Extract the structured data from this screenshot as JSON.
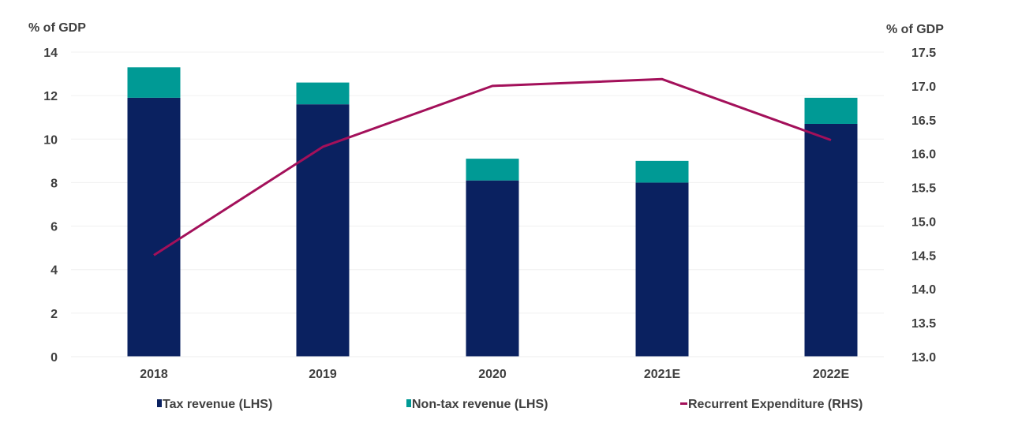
{
  "chart_data": {
    "type": "bar",
    "subtype": "stacked bar with line on secondary axis",
    "title": "",
    "categories": [
      "2018",
      "2019",
      "2020",
      "2021E",
      "2022E"
    ],
    "left_axis": {
      "label": "% of GDP",
      "ylim": [
        0,
        14
      ],
      "ticks": [
        0,
        2,
        4,
        6,
        8,
        10,
        12,
        14
      ],
      "tick_labels": [
        "0",
        "2",
        "4",
        "6",
        "8",
        "10",
        "12",
        "14"
      ]
    },
    "right_axis": {
      "label": "% of GDP",
      "ylim": [
        13.0,
        17.5
      ],
      "ticks": [
        13.0,
        13.5,
        14.0,
        14.5,
        15.0,
        15.5,
        16.0,
        16.5,
        17.0,
        17.5
      ],
      "tick_labels": [
        "13.0",
        "13.5",
        "14.0",
        "14.5",
        "15.0",
        "15.5",
        "16.0",
        "16.5",
        "17.0",
        "17.5"
      ]
    },
    "grid": true,
    "legend_position": "bottom",
    "series": [
      {
        "name": "Tax revenue (LHS)",
        "type": "bar",
        "axis": "left",
        "color": "#0a2160",
        "values": [
          11.9,
          11.6,
          8.1,
          8.0,
          10.7
        ]
      },
      {
        "name": "Non-tax revenue (LHS)",
        "type": "bar",
        "axis": "left",
        "color": "#009a95",
        "values": [
          1.4,
          1.0,
          1.0,
          1.0,
          1.2
        ]
      },
      {
        "name": "Recurrent Expenditure (RHS)",
        "type": "line",
        "axis": "right",
        "color": "#a3105a",
        "values": [
          14.5,
          16.1,
          17.0,
          17.1,
          16.2
        ]
      }
    ]
  }
}
